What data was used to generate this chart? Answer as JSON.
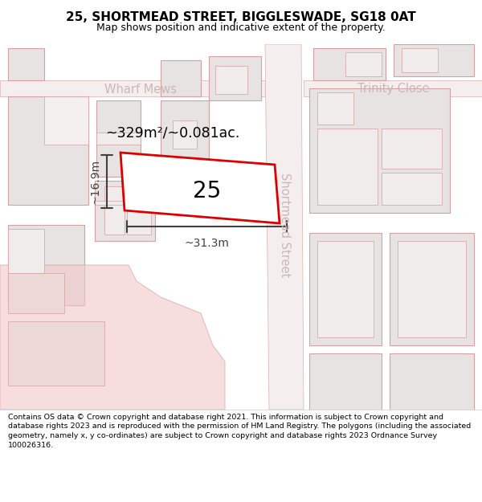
{
  "title": "25, SHORTMEAD STREET, BIGGLESWADE, SG18 0AT",
  "subtitle": "Map shows position and indicative extent of the property.",
  "footer": "Contains OS data © Crown copyright and database right 2021. This information is subject to Crown copyright and database rights 2023 and is reproduced with the permission of HM Land Registry. The polygons (including the associated geometry, namely x, y co-ordinates) are subject to Crown copyright and database rights 2023 Ordnance Survey 100026316.",
  "area_text": "~329m²/~0.081ac.",
  "number_text": "25",
  "dim_width": "~31.3m",
  "dim_height": "~16.9m",
  "wharf_mews": "Wharf Mews",
  "trinity_close": "Trinity Close",
  "shortmead_street": "Shortmead Street",
  "bg_color": "#f5f0f0",
  "road_color": "#f8f3f3",
  "building_fc": "#e8e3e3",
  "building_ec": "#d4a0a0",
  "highlight_fc": "#f0c8c8",
  "street_label_color": "#c8b8b8",
  "red_color": "#dd0000",
  "dim_color": "#404040",
  "title_fontsize": 11,
  "subtitle_fontsize": 9,
  "footer_fontsize": 6.8
}
